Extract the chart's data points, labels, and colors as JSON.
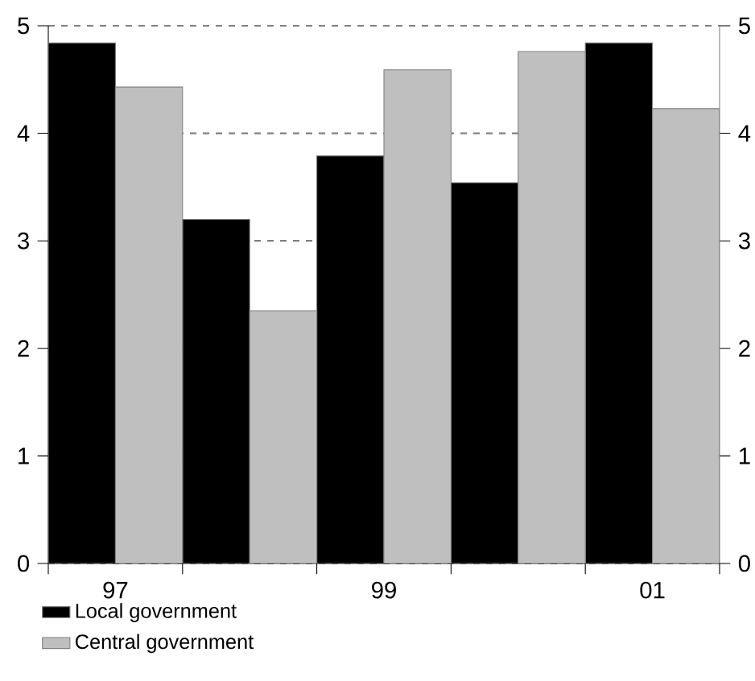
{
  "chart_data": {
    "type": "bar",
    "categories": [
      "97",
      null,
      "99",
      null,
      "01"
    ],
    "series": [
      {
        "name": "Local government",
        "color": "#000000",
        "values": [
          4.84,
          3.2,
          3.79,
          3.54,
          4.84
        ]
      },
      {
        "name": "Central government",
        "color": "#bfbfbf",
        "values": [
          4.43,
          2.35,
          4.59,
          4.76,
          4.23
        ]
      }
    ],
    "ylim": [
      0,
      5
    ],
    "yticks": [
      0,
      1,
      2,
      3,
      4,
      5
    ],
    "y2lim": [
      0,
      5
    ],
    "y2ticks": [
      0,
      1,
      2,
      3,
      4,
      5
    ],
    "grid": "y",
    "legend": "bottom left"
  }
}
